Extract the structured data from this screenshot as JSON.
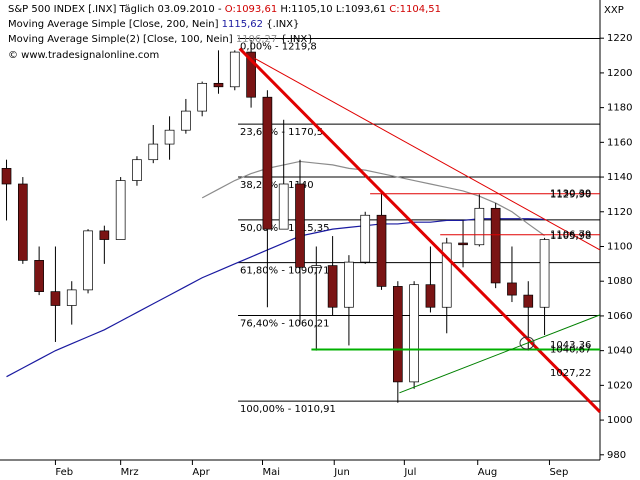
{
  "chart_data": {
    "type": "candlestick",
    "header": {
      "instrument": "S&P 500 INDEX [.INX]  Täglich 03.09.2010 -",
      "open": "O:1093,61",
      "high": "H:1105,10",
      "low": "L:1093,61",
      "close": "C:1104,51",
      "ma200_label": "Moving Average Simple [Close, 200, Nein]",
      "ma200_value": "1115,62",
      "ma200_suffix": "{.INX}",
      "ma100_label": "Moving Average Simple(2) [Close, 100, Nein]",
      "ma100_value": "1106,27",
      "ma100_suffix": "{.INX}",
      "copyright": "© www.tradesignalonline.com",
      "corner": "XXP"
    },
    "xlim": [
      -0.4,
      36.4
    ],
    "xticks": [
      {
        "value": 3,
        "label": "Feb"
      },
      {
        "value": 7,
        "label": "Mrz"
      },
      {
        "value": 11.4,
        "label": "Apr"
      },
      {
        "value": 15.7,
        "label": "Mai"
      },
      {
        "value": 20.1,
        "label": "Jun"
      },
      {
        "value": 24.4,
        "label": "Jul"
      },
      {
        "value": 28.9,
        "label": "Aug"
      },
      {
        "value": 33.3,
        "label": "Sep"
      }
    ],
    "ylim": [
      977,
      1242
    ],
    "yticks": [
      980,
      1000,
      1020,
      1040,
      1060,
      1080,
      1100,
      1120,
      1140,
      1160,
      1180,
      1200,
      1220
    ],
    "up_color": "#ffffff",
    "down_color": "#7a1414",
    "wick_color": "#000000",
    "open": [
      1145,
      1136,
      1092,
      1074,
      1066,
      1075,
      1109,
      1104,
      1138,
      1150,
      1159,
      1167,
      1178,
      1194,
      1192,
      1212,
      1186,
      1110,
      1136,
      1088,
      1089,
      1065,
      1091,
      1118,
      1077,
      1022,
      1078,
      1065,
      1102,
      1101,
      1122,
      1079,
      1072,
      1065
    ],
    "high": [
      1150,
      1140,
      1100,
      1100,
      1080,
      1110,
      1112,
      1140,
      1152,
      1170,
      1175,
      1185,
      1195,
      1213,
      1213,
      1219,
      1190,
      1173,
      1150,
      1100,
      1106,
      1095,
      1120,
      1131,
      1080,
      1080,
      1100,
      1105,
      1115,
      1130,
      1125,
      1100,
      1080,
      1105
    ],
    "low": [
      1115,
      1090,
      1072,
      1045,
      1055,
      1073,
      1090,
      1104,
      1135,
      1148,
      1150,
      1165,
      1175,
      1188,
      1190,
      1180,
      1065,
      1110,
      1055,
      1040,
      1060,
      1043,
      1090,
      1075,
      1010,
      1018,
      1062,
      1050,
      1088,
      1100,
      1076,
      1068,
      1040,
      1049
    ],
    "close": [
      1136,
      1092,
      1074,
      1066,
      1075,
      1109,
      1104,
      1138,
      1150,
      1159,
      1167,
      1178,
      1194,
      1192,
      1212,
      1186,
      1110,
      1136,
      1088,
      1089,
      1065,
      1091,
      1118,
      1077,
      1022,
      1078,
      1065,
      1102,
      1101,
      1122,
      1079,
      1072,
      1065,
      1104
    ],
    "series": [
      {
        "color": "#1a1aa0",
        "values": [
          1025,
          1030,
          1035,
          1040,
          1044,
          1048,
          1052,
          1057,
          1062,
          1067,
          1072,
          1077,
          1082,
          1086,
          1090,
          1094,
          1098,
          1102,
          1106,
          1108,
          1110,
          1111,
          1112,
          1113,
          1113,
          1114,
          1114,
          1115,
          1115,
          1116,
          1116,
          1116,
          1116,
          1115.62
        ]
      },
      {
        "color": "#8c8c8c",
        "values": [
          null,
          null,
          null,
          null,
          null,
          null,
          null,
          null,
          null,
          null,
          null,
          null,
          1128,
          1133,
          1138,
          1142,
          1145,
          1147,
          1149,
          1148,
          1147,
          1145,
          1144,
          1142,
          1140,
          1138,
          1136,
          1134,
          1132,
          1129,
          1125,
          1120,
          1113,
          1106.27
        ]
      }
    ],
    "fib_start": 14.2,
    "fib_levels": [
      {
        "value": 1219.8,
        "label": "0,00% - 1219,8"
      },
      {
        "value": 1170.5,
        "label": "23,60% - 1170,5"
      },
      {
        "value": 1140,
        "label": "38,20% - 1140"
      },
      {
        "value": 1115.35,
        "label": "50,00% - 1115,35"
      },
      {
        "value": 1090.71,
        "label": "61,80% - 1090,71"
      },
      {
        "value": 1060.21,
        "label": "76,40% - 1060,21"
      },
      {
        "value": 1010.91,
        "label": "100,00% - 1010,91"
      }
    ],
    "trendlines": [
      {
        "color": "#e00000",
        "width": 3,
        "x": [
          14.3,
          36.4
        ],
        "y": [
          1214,
          1004.7
        ]
      },
      {
        "color": "#e00000",
        "width": 1,
        "x": [
          15.2,
          36.4
        ],
        "y": [
          1208.5,
          1098
        ]
      },
      {
        "color": "#00b000",
        "width": 2,
        "x": [
          18.7,
          36.4
        ],
        "y": [
          1040.67,
          1040.67
        ]
      },
      {
        "color": "#008000",
        "width": 1,
        "x": [
          24.1,
          36.4
        ],
        "y": [
          1015.7,
          1060.6
        ]
      },
      {
        "color": "#e00000",
        "width": 1,
        "x": [
          22.3,
          36.4
        ],
        "y": [
          1130.4,
          1130.4
        ]
      },
      {
        "color": "#e00000",
        "width": 1,
        "x": [
          26.6,
          36.4
        ],
        "y": [
          1106.79,
          1106.79
        ]
      }
    ],
    "level_labels": [
      {
        "value": 1130.39,
        "label": "1130,39",
        "color": "#e00000"
      },
      {
        "value": 1129.9,
        "label": "1129,90",
        "color": "#e00000"
      },
      {
        "value": 1106.79,
        "label": "1106,79",
        "color": "#e00000"
      },
      {
        "value": 1105.98,
        "label": "1105,98",
        "color": "#e00000"
      },
      {
        "value": 1040.67,
        "label": "1040,67",
        "color": "#00a000"
      },
      {
        "value": 1043.36,
        "label": "1043,36",
        "color": "#c03030"
      },
      {
        "value": 1027.22,
        "label": "1027,22",
        "color": "#e00000"
      }
    ]
  }
}
